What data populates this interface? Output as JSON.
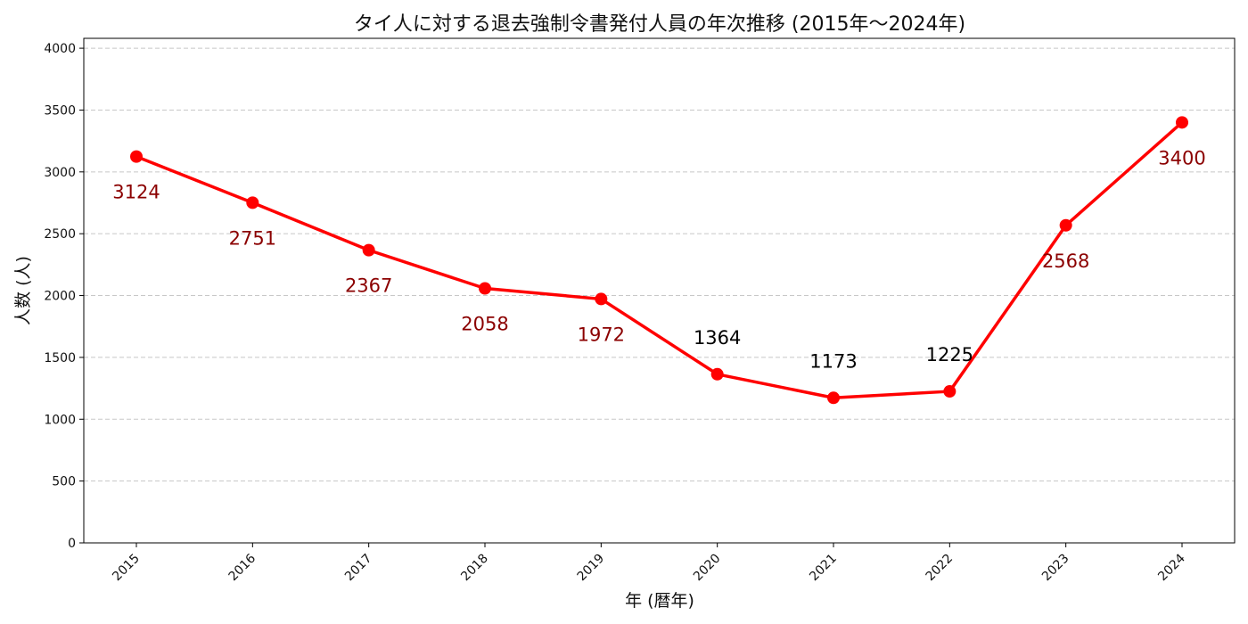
{
  "chart_data": {
    "type": "line",
    "title": "タイ人に対する退去強制令書発付人員の年次推移 (2015年〜2024年)",
    "xlabel": "年 (暦年)",
    "ylabel": "人数 (人)",
    "x": [
      "2015",
      "2016",
      "2017",
      "2018",
      "2019",
      "2020",
      "2021",
      "2022",
      "2023",
      "2024"
    ],
    "series": [
      {
        "values": [
          3124,
          2751,
          2367,
          2058,
          1972,
          1364,
          1173,
          1225,
          2568,
          3400
        ],
        "color": "#ff0000",
        "marker": "circle"
      }
    ],
    "data_labels": [
      "3124",
      "2751",
      "2367",
      "2058",
      "1972",
      "1364",
      "1173",
      "1225",
      "2568",
      "3400"
    ],
    "data_label_positions": [
      "below",
      "below",
      "below",
      "below",
      "below",
      "above",
      "above",
      "above",
      "below",
      "below"
    ],
    "data_label_colors": {
      "below": "#8b0000",
      "above": "#000000"
    },
    "ylim": [
      0,
      4080
    ],
    "yticks": [
      "0",
      "500",
      "1000",
      "1500",
      "2000",
      "2500",
      "3000",
      "3500",
      "4000"
    ],
    "grid": "horizontal dashed",
    "legend": "none"
  }
}
